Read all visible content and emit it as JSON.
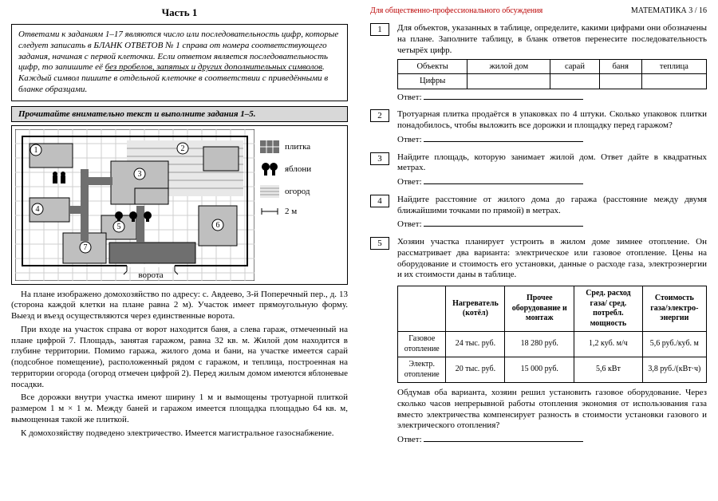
{
  "left": {
    "part_title": "Часть 1",
    "instructions_html": "Ответами к заданиям 1–17 являются число или последовательность цифр, которые следует записать в БЛАНК ОТВЕТОВ № 1 справа от номера соответствующего задания, начиная с первой клеточки. Если ответом является последовательность цифр, то запишите её <span class='u'>без пробелов, запятых и других дополнительных символов</span>. Каждый символ пишите в отдельной клеточке в соответствии с приведёнными в бланке образцами.",
    "read_bar": "Прочитайте внимательно текст и выполните задания 1–5.",
    "legend": {
      "tile": "плитка",
      "apple": "яблони",
      "garden": "огород",
      "scale": "2 м"
    },
    "gate_label": "ворота",
    "paragraphs": [
      "На плане изображено домохозяйство по адресу: с. Авдеево, 3-й Поперечный пер., д. 13 (сторона каждой клетки на плане равна 2 м). Участок имеет прямоугольную форму. Выезд и въезд осуществляются через единственные ворота.",
      "При входе на участок справа от ворот находится баня, а слева гараж, отмеченный на плане цифрой 7. Площадь, занятая гаражом, равна 32 кв. м. Жилой дом находится в глубине территории. Помимо гаража, жилого дома и бани, на участке имеется сарай (подсобное помещение), расположенный рядом с гаражом, и теплица, построенная на территории огорода (огород отмечен цифрой 2). Перед жилым домом имеются яблоневые посадки.",
      "Все дорожки внутри участка имеют ширину 1 м и вымощены тротуарной плиткой размером 1 м × 1 м. Между баней и гаражом имеется площадка площадью 64 кв. м, вымощенная такой же плиткой.",
      "К домохозяйству подведено электричество. Имеется магистральное газоснабжение."
    ]
  },
  "right": {
    "disclaimer": "Для общественно-профессионального обсуждения",
    "page_label": "МАТЕМАТИКА  3 / 16",
    "answer_label": "Ответ:",
    "tasks": {
      "t1": {
        "num": "1",
        "text": "Для объектов, указанных в таблице, определите, какими цифрами они обозначены на плане. Заполните таблицу, в бланк ответов перенесите последовательность четырёх цифр.",
        "table": {
          "row1": [
            "Объекты",
            "жилой дом",
            "сарай",
            "баня",
            "теплица"
          ],
          "row2_label": "Цифры"
        }
      },
      "t2": {
        "num": "2",
        "text": "Тротуарная плитка продаётся в упаковках по 4 штуки. Сколько упаковок плитки понадобилось, чтобы выложить все дорожки и площадку перед гаражом?"
      },
      "t3": {
        "num": "3",
        "text": "Найдите площадь, которую занимает жилой дом. Ответ дайте в квадратных метрах."
      },
      "t4": {
        "num": "4",
        "text": "Найдите расстояние от жилого дома до гаража (расстояние между двумя ближайшими точками по прямой) в метрах."
      },
      "t5": {
        "num": "5",
        "text": "Хозяин участка планирует устроить в жилом доме зимнее отопление. Он рассматривает два варианта: электрическое или газовое отопление. Цены на оборудование и стоимость его установки, данные о расходе газа, электроэнергии и их стоимости даны в таблице.",
        "table": {
          "headers": [
            "",
            "Нагреватель (котёл)",
            "Прочее оборудование и монтаж",
            "Сред. расход газа/ сред. потребл. мощность",
            "Стоимость газа/электро-энергии"
          ],
          "rows": [
            [
              "Газовое отопление",
              "24 тыс. руб.",
              "18 280 руб.",
              "1,2 куб. м/ч",
              "5,6 руб./куб. м"
            ],
            [
              "Электр. отопление",
              "20 тыс. руб.",
              "15 000 руб.",
              "5,6 кВт",
              "3,8 руб./(кВт·ч)"
            ]
          ]
        },
        "after": "Обдумав оба варианта, хозяин решил установить газовое оборудование. Через сколько часов непрерывной работы отопления экономия от использования газа вместо электричества компенсирует разность в стоимости установки газового и электрического отопления?"
      }
    }
  },
  "plan": {
    "grid_color": "#cfcfcf",
    "bg": "#ffffff",
    "tile_fill": "#6f6f6f",
    "build_fill": "#bfbfbf",
    "garden_hatch": "#9a9a9a",
    "border": "#000000",
    "labels": [
      "1",
      "2",
      "3",
      "4",
      "5",
      "6",
      "7"
    ]
  }
}
